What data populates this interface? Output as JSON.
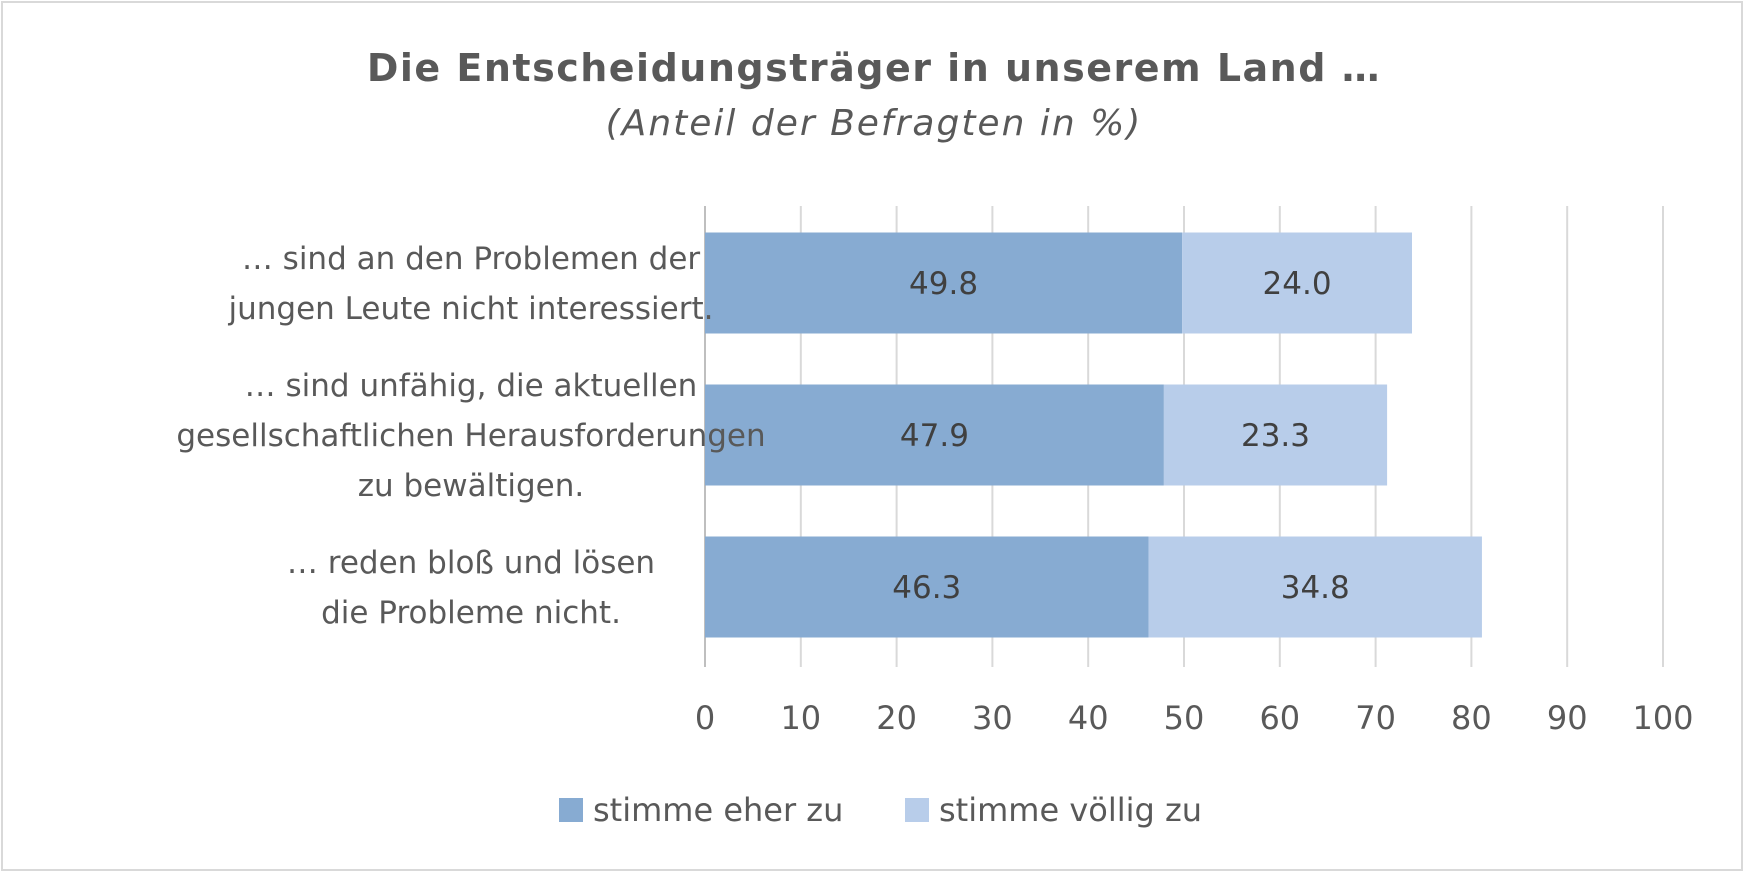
{
  "chart_data": {
    "type": "bar",
    "orientation": "horizontal",
    "stacked": true,
    "title": "Die Entscheidungsträger in unserem Land …",
    "subtitle": "(Anteil der Befragten in %)",
    "categories": [
      [
        "… sind an den Problemen der",
        "jungen Leute nicht interessiert."
      ],
      [
        "… sind unfähig, die aktuellen",
        "gesellschaftlichen Herausforderungen",
        "zu bewältigen."
      ],
      [
        "… reden bloß und lösen",
        "die Probleme nicht."
      ]
    ],
    "series": [
      {
        "name": "stimme eher zu",
        "color": "#87abd2",
        "values": [
          49.8,
          47.9,
          46.3
        ],
        "labels": [
          "49.8",
          "47.9",
          "46.3"
        ]
      },
      {
        "name": "stimme völlig zu",
        "color": "#b8cdea",
        "values": [
          24.0,
          23.3,
          34.8
        ],
        "labels": [
          "24.0",
          "23.3",
          "34.8"
        ]
      }
    ],
    "xlim": [
      0,
      100
    ],
    "xticks": [
      "0",
      "10",
      "20",
      "30",
      "40",
      "50",
      "60",
      "70",
      "80",
      "90",
      "100"
    ],
    "grid": true,
    "legend_position": "bottom"
  }
}
